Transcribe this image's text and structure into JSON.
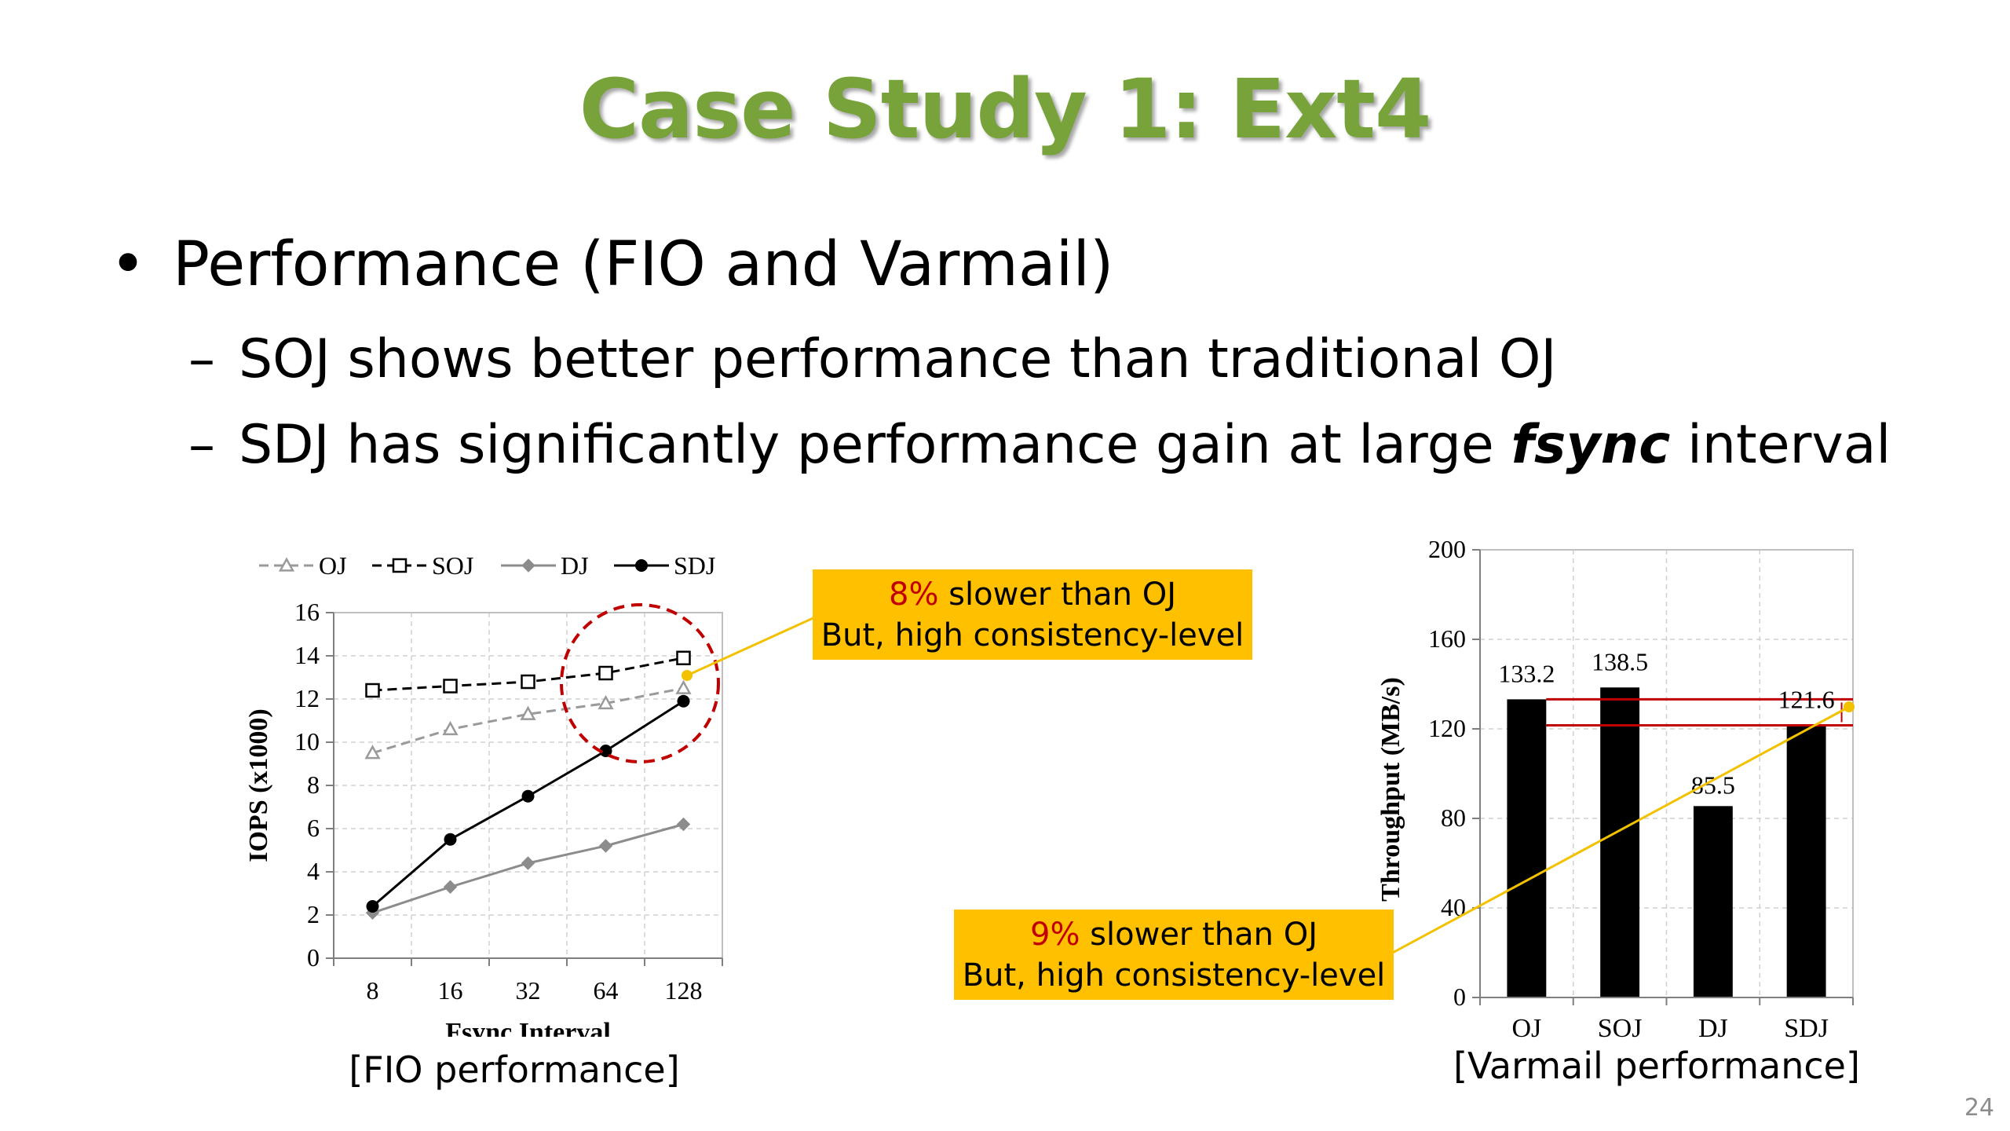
{
  "slide": {
    "title": "Case Study 1: Ext4",
    "bullet1": "Performance (FIO and Varmail)",
    "bullet2": "SOJ shows better performance than traditional OJ",
    "bullet3_before": "SDJ has significantly performance gain at large ",
    "bullet3_em": "fsync",
    "bullet3_after": " interval",
    "bullet_marker": "•",
    "sub_marker": "–",
    "page_number": "24"
  },
  "callouts": {
    "fio": {
      "pct": "8%",
      "line1_rest": " slower than OJ",
      "line2": "But, high consistency-level"
    },
    "varmail": {
      "pct": "9%",
      "line1_rest": " slower than OJ",
      "line2": "But, high consistency-level"
    }
  },
  "captions": {
    "fio": "[FIO performance]",
    "varmail": "[Varmail performance]"
  },
  "colors": {
    "title": "#77a33a",
    "callout_bg": "#ffc000",
    "callout_pct": "#c00000",
    "circle": "#c00000",
    "connector": "#f2c200"
  },
  "chart_data": [
    {
      "type": "line",
      "xlabel": "Fsync Interval",
      "ylabel": "IOPS (x1000)",
      "categories": [
        "8",
        "16",
        "32",
        "64",
        "128"
      ],
      "ylim": [
        0,
        16
      ],
      "yticks": [
        0,
        2,
        4,
        6,
        8,
        10,
        12,
        14,
        16
      ],
      "grid": true,
      "legend_position": "top",
      "series": [
        {
          "name": "OJ",
          "values": [
            9.5,
            10.6,
            11.3,
            11.8,
            12.5
          ],
          "color": "#9a9a9a",
          "dash": true,
          "marker": "triangle"
        },
        {
          "name": "SOJ",
          "values": [
            12.4,
            12.6,
            12.8,
            13.2,
            13.9
          ],
          "color": "#000000",
          "dash": true,
          "marker": "square"
        },
        {
          "name": "DJ",
          "values": [
            2.1,
            3.3,
            4.4,
            5.2,
            6.2
          ],
          "color": "#8c8c8c",
          "dash": false,
          "marker": "diamond"
        },
        {
          "name": "SDJ",
          "values": [
            2.4,
            5.5,
            7.5,
            9.6,
            11.9
          ],
          "color": "#000000",
          "dash": false,
          "marker": "circle"
        }
      ]
    },
    {
      "type": "bar",
      "xlabel": "",
      "ylabel": "Throughput (MB/s)",
      "categories": [
        "OJ",
        "SOJ",
        "DJ",
        "SDJ"
      ],
      "values": [
        133.2,
        138.5,
        85.5,
        121.6
      ],
      "labels": [
        "133.2",
        "138.5",
        "85.5",
        "121.6"
      ],
      "ylim": [
        0,
        200
      ],
      "yticks": [
        0,
        40,
        80,
        120,
        160,
        200
      ],
      "grid": true,
      "reference_lines": [
        133.2,
        121.6
      ],
      "reference_color": "#c00000"
    }
  ]
}
